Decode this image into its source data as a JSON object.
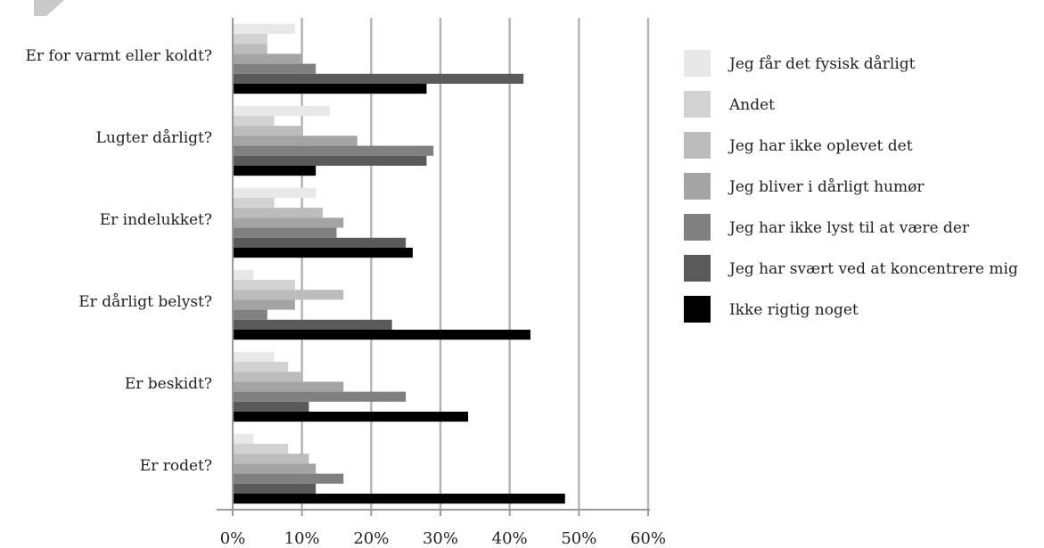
{
  "chart_data": {
    "type": "bar",
    "orientation": "horizontal",
    "categories": [
      "Er for varmt eller koldt?",
      "Lugter dårligt?",
      "Er indelukket?",
      "Er dårligt belyst?",
      "Er beskidt?",
      "Er rodet?"
    ],
    "series": [
      {
        "name": "Jeg får det fysisk dårligt",
        "color": "#e8e8e8",
        "values": [
          9,
          14,
          12,
          3,
          6,
          3
        ]
      },
      {
        "name": "Andet",
        "color": "#d2d2d2",
        "values": [
          5,
          6,
          6,
          9,
          8,
          8
        ]
      },
      {
        "name": "Jeg har ikke oplevet det",
        "color": "#bcbcbc",
        "values": [
          5,
          10,
          13,
          16,
          10,
          11
        ]
      },
      {
        "name": "Jeg bliver i dårligt humør",
        "color": "#a4a4a4",
        "values": [
          10,
          18,
          16,
          9,
          16,
          12
        ]
      },
      {
        "name": "Jeg har ikke lyst til at være der",
        "color": "#808080",
        "values": [
          12,
          29,
          15,
          5,
          25,
          16
        ]
      },
      {
        "name": "Jeg har svært ved at koncentrere mig",
        "color": "#5a5a5a",
        "values": [
          42,
          28,
          25,
          23,
          11,
          12
        ]
      },
      {
        "name": "Ikke rigtig noget",
        "color": "#000000",
        "values": [
          28,
          12,
          26,
          43,
          34,
          48
        ]
      }
    ],
    "x_ticks": [
      "0%",
      "10%",
      "20%",
      "30%",
      "40%",
      "50%",
      "60%"
    ],
    "xlim": [
      0,
      60
    ],
    "grid": true,
    "legend_position": "right",
    "title": "",
    "xlabel": "",
    "ylabel": ""
  }
}
